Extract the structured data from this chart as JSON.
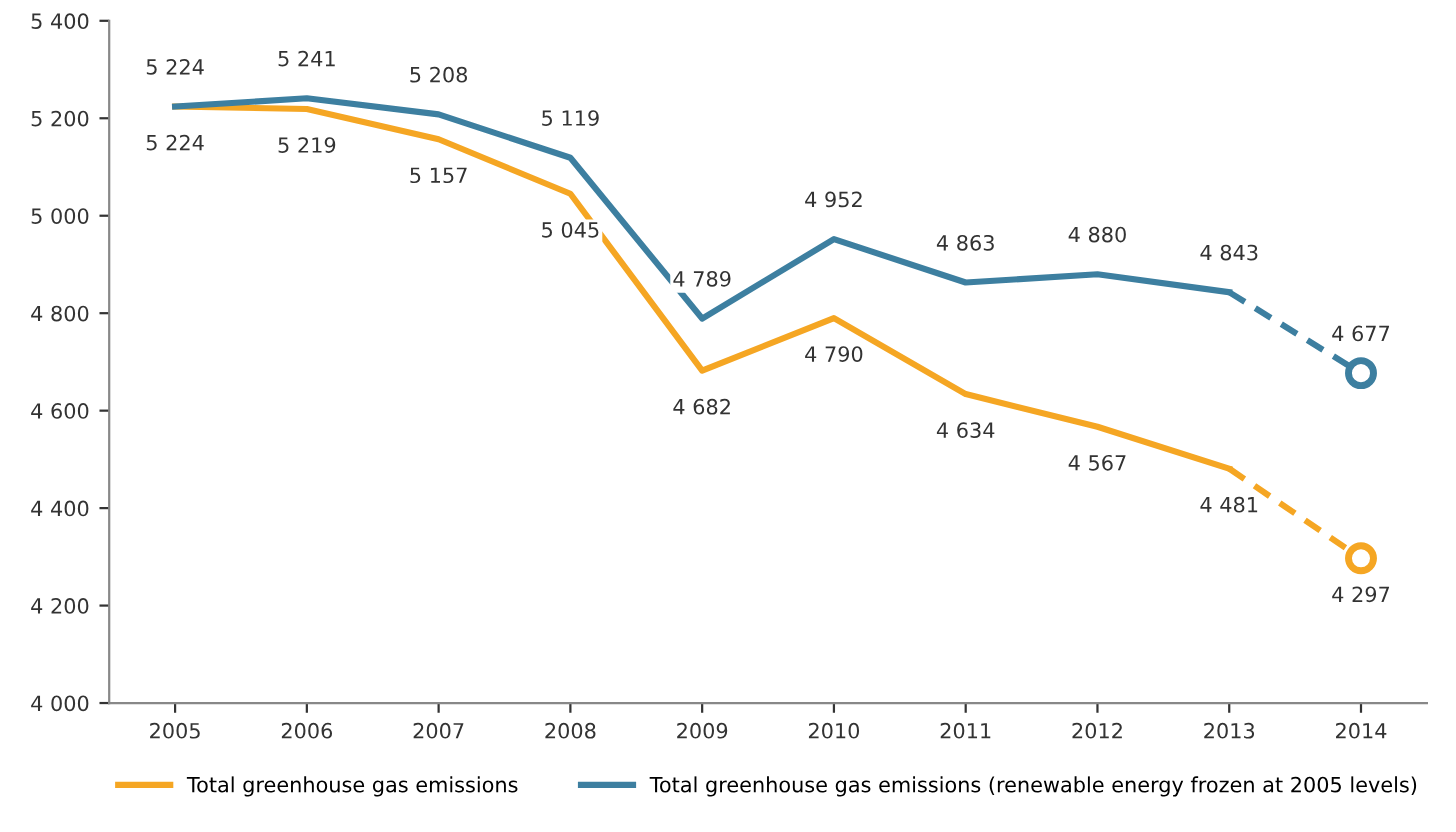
{
  "chart_data": {
    "type": "line",
    "categories": [
      "2005",
      "2006",
      "2007",
      "2008",
      "2009",
      "2010",
      "2011",
      "2012",
      "2013",
      "2014"
    ],
    "ylim": [
      4000,
      5400
    ],
    "yticks": [
      {
        "value": 4000,
        "label": "4 000"
      },
      {
        "value": 4200,
        "label": "4 200"
      },
      {
        "value": 4400,
        "label": "4 400"
      },
      {
        "value": 4600,
        "label": "4 600"
      },
      {
        "value": 4800,
        "label": "4 800"
      },
      {
        "value": 5000,
        "label": "5 000"
      },
      {
        "value": 5200,
        "label": "5 200"
      },
      {
        "value": 5400,
        "label": "5 400"
      }
    ],
    "legend": "bottom",
    "grid": false,
    "series": [
      {
        "name": "Total greenhouse gas emissions",
        "color": "#f5a623",
        "line_style": "solid",
        "values": [
          5224,
          5219,
          5157,
          5045,
          4682,
          4790,
          4634,
          4567,
          4481,
          null
        ],
        "value_labels": [
          "5 224",
          "5 219",
          "5 157",
          "5 045",
          "4 682",
          "4 790",
          "4 634",
          "4 567",
          "4 481",
          null
        ]
      },
      {
        "name": "Total greenhouse gas emissions (renewable energy frozen at 2005 levels)",
        "color": "#3d7fa0",
        "line_style": "solid",
        "values": [
          5224,
          5241,
          5208,
          5119,
          4789,
          4952,
          4863,
          4880,
          4843,
          null
        ],
        "value_labels": [
          "5 224",
          "5 241",
          "5 208",
          "5 119",
          "4 789",
          "4 952",
          "4 863",
          "4 880",
          "4 843",
          null
        ]
      },
      {
        "color": "#f5a623",
        "line_style": "dashed",
        "values": [
          null,
          null,
          null,
          null,
          null,
          null,
          null,
          null,
          4481,
          4297
        ]
      },
      {
        "color": "#3d7fa0",
        "line_style": "dashed",
        "values": [
          null,
          null,
          null,
          null,
          null,
          null,
          null,
          null,
          4843,
          4677
        ]
      },
      {
        "type": "scatter",
        "color": "#f5a623",
        "marker": "circle",
        "values": [
          null,
          null,
          null,
          null,
          null,
          null,
          null,
          null,
          null,
          4297
        ],
        "value_labels": [
          null,
          null,
          null,
          null,
          null,
          null,
          null,
          null,
          null,
          "4 297"
        ]
      },
      {
        "type": "scatter",
        "color": "#3d7fa0",
        "marker": "circle",
        "values": [
          null,
          null,
          null,
          null,
          null,
          null,
          null,
          null,
          null,
          4677
        ],
        "value_labels": [
          null,
          null,
          null,
          null,
          null,
          null,
          null,
          null,
          null,
          "4 677"
        ]
      }
    ]
  }
}
